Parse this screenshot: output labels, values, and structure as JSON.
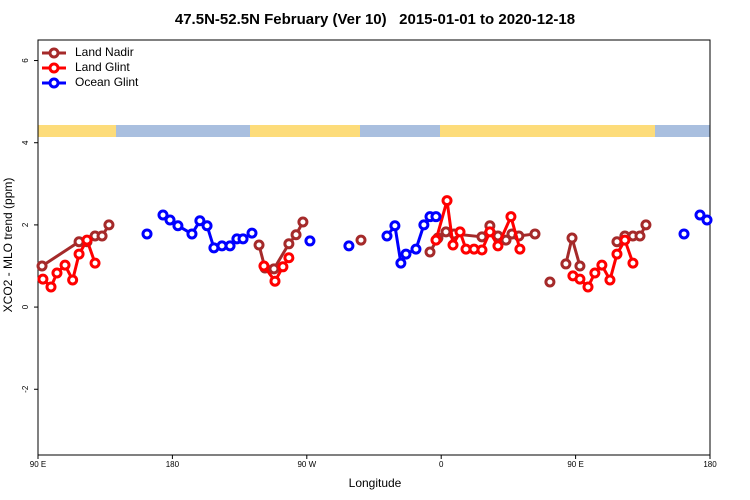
{
  "chart_data": {
    "type": "line",
    "title": "47.5N-52.5N February (Ver 10)   2015-01-01 to 2020-12-18",
    "xlabel": "Longitude",
    "ylabel": "XCO2 - MLO trend (ppm)",
    "xlim": [
      90,
      540
    ],
    "ylim": [
      -3.6,
      6.5
    ],
    "xticks": [
      {
        "value": 90,
        "label": "90 E"
      },
      180,
      {
        "value": 270,
        "label": "90 W"
      },
      {
        "value": 360,
        "label": "0"
      },
      {
        "value": 450,
        "label": "90 E"
      },
      {
        "value": 540,
        "label": "180"
      }
    ],
    "yticks": [
      -2,
      0,
      2,
      4,
      6
    ],
    "legend": "top-left",
    "series": [
      {
        "name": "Land Nadir",
        "color": "#a52a2a",
        "x": [
          92.7,
          117.5,
          122.8,
          128.2,
          132.9,
          137.5,
          null,
          238,
          242,
          248,
          258,
          262.8,
          267.4,
          null,
          306.3,
          null,
          352.5,
          357.8,
          363.2,
          368.6,
          387.3,
          392.6,
          398,
          403.4,
          407.4,
          412,
          422.8,
          null,
          432.8,
          null,
          443.5,
          447.6,
          452.9,
          null,
          477.7,
          483,
          488.4,
          493.1,
          497.1
        ],
        "values": [
          1.0,
          1.59,
          1.59,
          1.73,
          1.73,
          2.0,
          null,
          1.51,
          0.95,
          0.93,
          1.54,
          1.76,
          2.07,
          null,
          1.63,
          null,
          1.34,
          1.68,
          1.83,
          1.78,
          1.71,
          1.98,
          1.73,
          1.63,
          1.78,
          1.73,
          1.78,
          null,
          0.61,
          null,
          1.05,
          1.68,
          1.0,
          null,
          1.59,
          1.73,
          1.73,
          1.73,
          2.0
        ]
      },
      {
        "name": "Land Glint",
        "color": "#ff0000",
        "x": [
          93.3,
          98.7,
          102.7,
          108.1,
          113.2,
          117.5,
          122.8,
          128.2,
          null,
          241.3,
          248.7,
          254,
          258,
          null,
          356.5,
          363.9,
          367.9,
          372.6,
          376.6,
          382,
          387.3,
          392.6,
          398,
          406.7,
          412.7,
          null,
          448.2,
          452.9,
          458.3,
          462.9,
          467.6,
          473,
          477.7,
          483,
          488.4
        ],
        "values": [
          0.68,
          0.49,
          0.83,
          1.02,
          0.66,
          1.29,
          1.63,
          1.07,
          null,
          1.0,
          0.63,
          0.98,
          1.2,
          null,
          1.63,
          2.59,
          1.51,
          1.83,
          1.41,
          1.41,
          1.39,
          1.83,
          1.49,
          2.2,
          1.41,
          null,
          0.76,
          0.68,
          0.49,
          0.83,
          1.02,
          0.66,
          1.29,
          1.63,
          1.07
        ]
      },
      {
        "name": "Ocean Glint",
        "color": "#0000ff",
        "x": [
          163,
          null,
          173.7,
          178.4,
          183.7,
          193.1,
          198.4,
          203.2,
          207.8,
          213.2,
          218.6,
          223.2,
          227.3,
          233.3,
          null,
          272.1,
          null,
          298.2,
          null,
          323.7,
          329,
          333,
          336.4,
          343.1,
          348.4,
          352.5,
          356.5,
          null,
          522.6,
          null,
          533.3,
          538
        ],
        "values": [
          1.78,
          null,
          2.24,
          2.12,
          1.98,
          1.78,
          2.1,
          1.98,
          1.44,
          1.49,
          1.49,
          1.66,
          1.66,
          1.8,
          null,
          1.61,
          null,
          1.49,
          null,
          1.73,
          1.98,
          1.07,
          1.29,
          1.41,
          2.0,
          2.2,
          2.2,
          null,
          1.78,
          null,
          2.24,
          2.12
        ]
      }
    ]
  }
}
